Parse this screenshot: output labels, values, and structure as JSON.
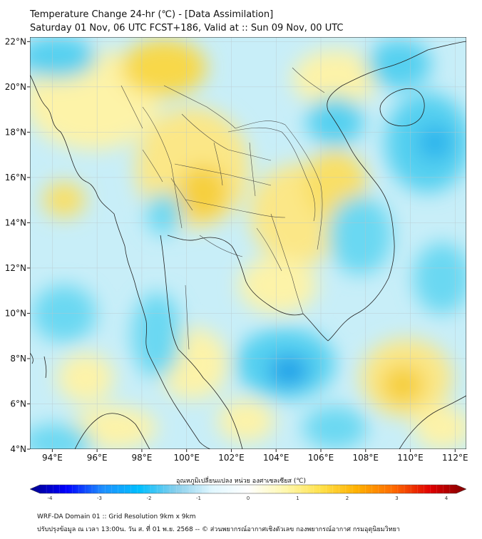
{
  "header": {
    "title_line1": "Temperature Change 24-hr (℃) - [Data Assimilation]",
    "title_line2": "Saturday 01 Nov, 06 UTC FCST+186, Valid at :: Sun 09 Nov, 00 UTC"
  },
  "map": {
    "lon_labels": [
      "94°E",
      "96°E",
      "98°E",
      "100°E",
      "102°E",
      "104°E",
      "106°E",
      "108°E",
      "110°E",
      "112°E"
    ],
    "lat_labels": [
      "22°N",
      "20°N",
      "18°N",
      "16°N",
      "14°N",
      "12°N",
      "10°N",
      "8°N",
      "6°N",
      "4°N"
    ],
    "lon_range": [
      93,
      112.5
    ],
    "lat_range": [
      4,
      22.2
    ],
    "gridlines": true,
    "colors": {
      "ocean_base": "#c8eef8",
      "warm_light": "#fdf3a8",
      "warm_mid": "#f8d84a",
      "cool_mid": "#54d0f0",
      "cool_deep": "#1aa0e8",
      "border": "#222222"
    }
  },
  "colorbar": {
    "title": "อุณหภูมิเปลี่ยนแปลง หน่วย องศาเซลเซียส (℃)",
    "ticks": [
      "-4",
      "-3",
      "-2",
      "-1",
      "0",
      "1",
      "2",
      "3",
      "4"
    ],
    "min": -4,
    "max": 4,
    "stops": [
      "#00008b",
      "#0000ff",
      "#1e90ff",
      "#00bfff",
      "#87ceeb",
      "#e0f7ff",
      "#ffffff",
      "#fff8b0",
      "#ffe14a",
      "#ffb000",
      "#ff6a00",
      "#e00000",
      "#800000"
    ]
  },
  "footer": {
    "line1": "WRF-DA Domain 01 :: Grid Resolution 9km x 9km",
    "line2": "ปรับปรุงข้อมูล ณ เวลา 13:00น. วัน ส. ที่ 01 พ.ย. 2568 -- © ส่วนพยากรณ์อากาศเชิงตัวเลข กองพยากรณ์อากาศ กรมอุตุนิยมวิทยา"
  }
}
